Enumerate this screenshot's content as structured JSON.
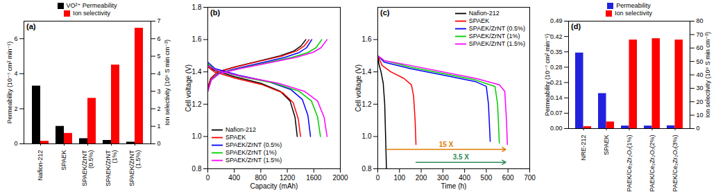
{
  "chart_data": [
    {
      "type": "bar",
      "title": "(a)",
      "categories": [
        "Nafion-212",
        "SPAEK",
        "SPAEK/ZrNT (0.5%)",
        "SPAEK/ZrNT (1%)",
        "SPAEK/ZrNT (1.5%)"
      ],
      "series": [
        {
          "name": "VO²⁺ Permeability",
          "color": "#000000",
          "values": [
            3.3,
            1.0,
            0.3,
            0.2,
            0.1
          ]
        },
        {
          "name": "Ion selectivity",
          "color": "#ff0000",
          "axis": "y2",
          "values": [
            0.15,
            0.6,
            2.6,
            4.5,
            6.6
          ]
        }
      ],
      "ylabel": "Permeability (10⁻⁷ cm² min⁻¹)",
      "y2label": "Ion selectivity (10⁶ S min cm⁻³)",
      "ylim": [
        0,
        7
      ],
      "yticks": [
        0,
        2,
        4,
        6
      ],
      "y2lim": [
        0,
        7
      ],
      "y2ticks": [
        0,
        1,
        2,
        3,
        4,
        5,
        6,
        7
      ],
      "legend": "top"
    },
    {
      "type": "line",
      "title": "(b)",
      "xlabel": "Capacity (mAh)",
      "ylabel": "Cell voltage (V)",
      "xlim": [
        0,
        2000
      ],
      "xticks": [
        0,
        400,
        800,
        1200,
        1600,
        2000
      ],
      "ylim": [
        0.8,
        1.8
      ],
      "yticks": [
        0.8,
        {
          "value": 1.0,
          "label": "1.0"
        },
        1.2,
        1.4,
        1.6,
        1.8
      ],
      "legend": "lower left",
      "series": [
        {
          "name": "Nafion-212",
          "color": "#000000",
          "x": [
            0,
            44,
            148,
            400,
            799,
            1095,
            1302,
            1406,
            1480,
            null,
            0,
            95,
            405,
            797,
            1094,
            1242,
            1316,
            1350
          ],
          "values": [
            1.3,
            1.36,
            1.4,
            1.43,
            1.47,
            1.5,
            1.53,
            1.56,
            1.6,
            null,
            1.44,
            1.41,
            1.37,
            1.33,
            1.28,
            1.22,
            1.12,
            1.0
          ]
        },
        {
          "name": "SPAEK",
          "color": "#ff0000",
          "x": [
            0,
            46,
            153,
            413,
            826,
            1132,
            1346,
            1454,
            1530,
            null,
            0,
            98,
            420,
            826,
            1134,
            1288,
            1365,
            1400
          ],
          "values": [
            1.3,
            1.36,
            1.4,
            1.43,
            1.47,
            1.5,
            1.53,
            1.56,
            1.6,
            null,
            1.43,
            1.4,
            1.36,
            1.32,
            1.27,
            1.21,
            1.11,
            1.0
          ]
        },
        {
          "name": "SPAEK/ZrNT (0.5%)",
          "color": "#0000ff",
          "x": [
            0,
            47,
            157,
            424,
            848,
            1162,
            1382,
            1492,
            1570,
            null,
            0,
            109,
            465,
            915,
            1256,
            1426,
            1511,
            1550
          ],
          "values": [
            1.28,
            1.35,
            1.39,
            1.42,
            1.46,
            1.49,
            1.52,
            1.55,
            1.6,
            null,
            1.46,
            1.42,
            1.38,
            1.34,
            1.29,
            1.23,
            1.13,
            1.0
          ]
        },
        {
          "name": "SPAEK/ZrNT (1%)",
          "color": "#00cc00",
          "x": [
            0,
            52,
            172,
            464,
            929,
            1273,
            1514,
            1634,
            1720,
            null,
            0,
            119,
            510,
            1003,
            1377,
            1564,
            1658,
            1700
          ],
          "values": [
            1.28,
            1.35,
            1.39,
            1.42,
            1.46,
            1.49,
            1.52,
            1.55,
            1.6,
            null,
            1.45,
            1.41,
            1.37,
            1.33,
            1.28,
            1.22,
            1.12,
            1.0
          ]
        },
        {
          "name": "SPAEK/ZrNT (1.5%)",
          "color": "#ff00ff",
          "x": [
            0,
            54,
            180,
            486,
            972,
            1332,
            1584,
            1710,
            1800,
            null,
            0,
            126,
            540,
            1062,
            1458,
            1656,
            1755,
            1800
          ],
          "values": [
            1.28,
            1.35,
            1.39,
            1.42,
            1.46,
            1.49,
            1.52,
            1.55,
            1.6,
            null,
            1.44,
            1.41,
            1.37,
            1.33,
            1.28,
            1.22,
            1.12,
            1.0
          ]
        }
      ]
    },
    {
      "type": "line",
      "title": "(c)",
      "xlabel": "Time (h)",
      "ylabel": "Cell voltage (V)",
      "xlim": [
        0,
        700
      ],
      "xticks": [
        0,
        100,
        200,
        300,
        400,
        500,
        600,
        700
      ],
      "ylim": [
        0.8,
        1.8
      ],
      "yticks": [
        0.8,
        {
          "value": 1.0,
          "label": "1.0"
        },
        1.2,
        1.4,
        1.6
      ],
      "legend": "top right",
      "series": [
        {
          "name": "Nafion-212",
          "color": "#000000",
          "x": [
            0,
            5,
            15,
            25,
            32,
            36,
            40
          ],
          "values": [
            1.5,
            1.45,
            1.4,
            1.33,
            1.2,
            1.0,
            0.8
          ]
        },
        {
          "name": "SPAEK",
          "color": "#ff0000",
          "x": [
            0,
            20,
            60,
            120,
            155,
            165,
            172,
            176
          ],
          "values": [
            1.5,
            1.44,
            1.4,
            1.36,
            1.32,
            1.25,
            1.1,
            0.95
          ]
        },
        {
          "name": "SPAEK/ZrNT (0.5%)",
          "color": "#0000ff",
          "x": [
            0,
            30,
            150,
            300,
            450,
            500,
            510,
            518
          ],
          "values": [
            1.5,
            1.46,
            1.42,
            1.38,
            1.34,
            1.31,
            1.2,
            0.97
          ]
        },
        {
          "name": "SPAEK/ZrNT (1%)",
          "color": "#00cc00",
          "x": [
            0,
            30,
            150,
            300,
            450,
            540,
            552,
            560
          ],
          "values": [
            1.5,
            1.47,
            1.43,
            1.39,
            1.35,
            1.31,
            1.2,
            0.96
          ]
        },
        {
          "name": "SPAEK/ZrNT (1.5%)",
          "color": "#ff00ff",
          "x": [
            0,
            30,
            150,
            300,
            450,
            560,
            585,
            593,
            597
          ],
          "values": [
            1.5,
            1.47,
            1.44,
            1.4,
            1.36,
            1.32,
            1.28,
            1.1,
            0.95
          ]
        }
      ],
      "annotations": [
        {
          "text": "15 X",
          "x1": 40,
          "x2": 590,
          "y": 0.92,
          "color": "#e07b00"
        },
        {
          "text": "3.5 X",
          "x1": 176,
          "x2": 590,
          "y": 0.84,
          "color": "#2e8b57"
        }
      ]
    },
    {
      "type": "bar",
      "title": "(d)",
      "categories": [
        "NRE-212",
        "SPAEK",
        "SPAEK/Ce₂Zr₂O₇(1%)",
        "SPAEK/Ce₂Zr₂O₇(2%)",
        "SPAEK/Ce₂Zr₂O₇(3%)"
      ],
      "series": [
        {
          "name": "Permeability",
          "color": "#2222dd",
          "values": [
            0.345,
            0.16,
            0.012,
            0.012,
            0.013
          ]
        },
        {
          "name": "Ion selectivity",
          "color": "#ff0000",
          "axis": "y2",
          "values": [
            1.5,
            5,
            66,
            67,
            66
          ]
        }
      ],
      "ylabel": "Permeability (10⁻⁷ cm² min⁻¹)",
      "y2label": "Ion selectivity (10⁶ S min cm⁻³)",
      "ylim": [
        0,
        0.49
      ],
      "yticks": [
        {
          "value": 0,
          "label": "0.00"
        },
        0.07,
        0.14,
        0.21,
        0.28,
        0.35,
        0.42,
        0.49
      ],
      "y2lim": [
        0,
        80
      ],
      "y2ticks": [
        0,
        10,
        20,
        30,
        40,
        50,
        60,
        70,
        80
      ],
      "legend": "top"
    }
  ]
}
